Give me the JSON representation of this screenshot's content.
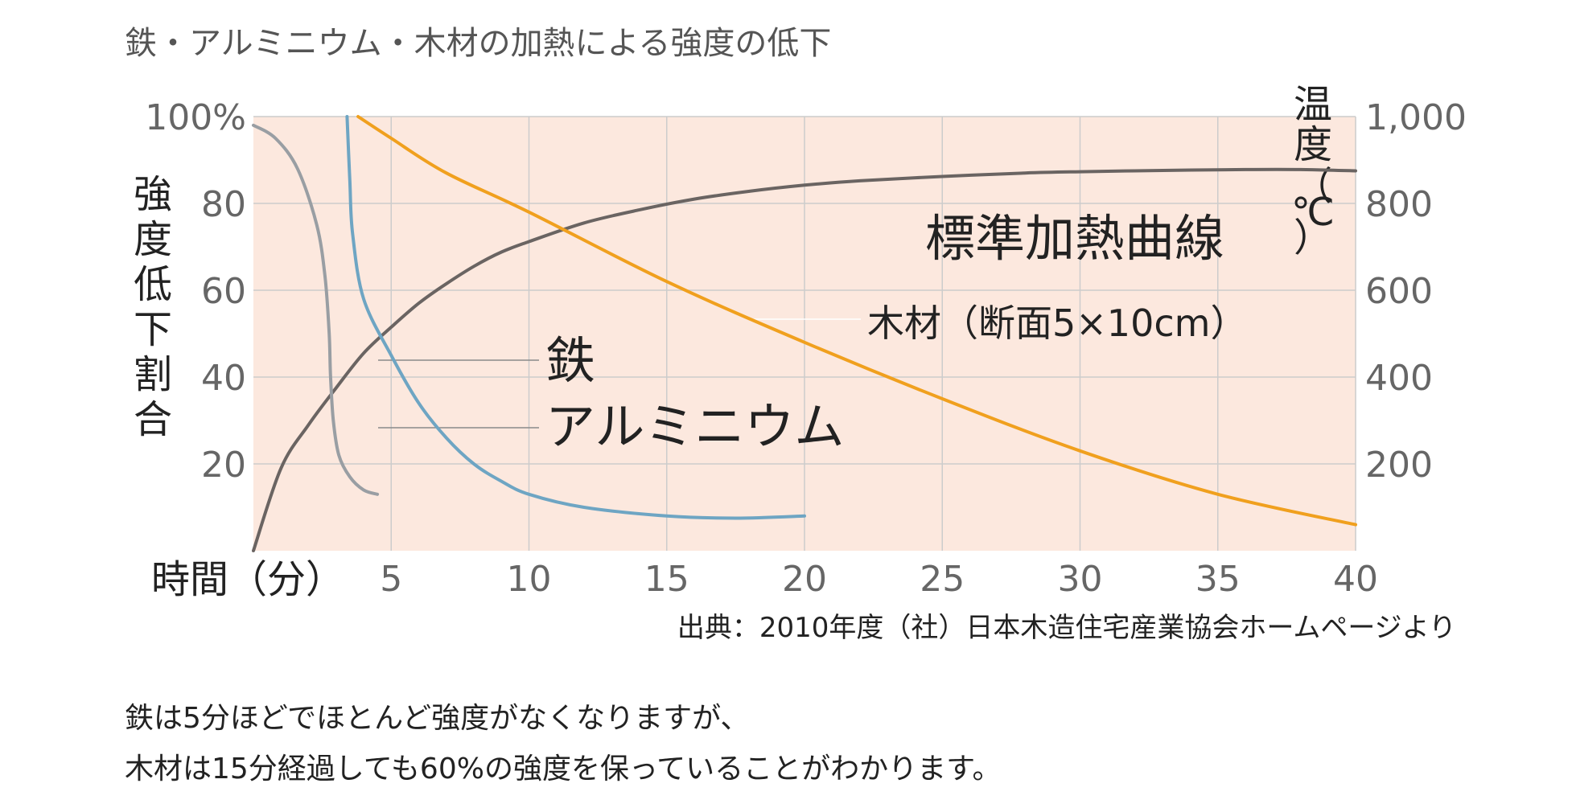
{
  "chart_data": {
    "type": "line",
    "title": "鉄・アルミニウム・木材の加熱による強度の低下",
    "xlabel": "時間（分）",
    "ylabel_left": [
      "強",
      "度",
      "低",
      "下",
      "割",
      "合"
    ],
    "ylabel_right": [
      "温",
      "度",
      "（",
      "℃",
      "）"
    ],
    "x_range": [
      0,
      40
    ],
    "y_left_range": [
      0,
      100
    ],
    "y_right_range": [
      0,
      1000
    ],
    "x_ticks": [
      "5",
      "10",
      "15",
      "20",
      "25",
      "30",
      "35",
      "40"
    ],
    "y_left_ticks": [
      "100%",
      "80",
      "60",
      "40",
      "20"
    ],
    "y_right_ticks": [
      "1,000",
      "800",
      "600",
      "400",
      "200"
    ],
    "grid": true,
    "series": [
      {
        "name": "標準加熱曲線",
        "color": "#6a6462",
        "axis": "right",
        "x": [
          0,
          1,
          2,
          3,
          4,
          5,
          6,
          7,
          8,
          9,
          10,
          12,
          14,
          16,
          18,
          20,
          22,
          25,
          28,
          30,
          33,
          36,
          38,
          40
        ],
        "y": [
          0,
          190,
          290,
          375,
          455,
          515,
          570,
          615,
          655,
          688,
          712,
          755,
          785,
          810,
          828,
          842,
          852,
          862,
          870,
          873,
          876,
          878,
          878,
          875
        ]
      },
      {
        "name": "木材（断面5×10cm）",
        "color": "#f0a01e",
        "axis": "left",
        "x": [
          3.8,
          5,
          7,
          10,
          15,
          20,
          25,
          30,
          35,
          40
        ],
        "y": [
          100,
          95,
          87,
          78,
          62,
          48,
          35,
          23,
          13,
          6
        ]
      },
      {
        "name": "鉄",
        "color": "#999ea3",
        "axis": "left",
        "x": [
          0,
          0.8,
          1.6,
          2.3,
          2.6,
          2.75,
          2.8,
          2.9,
          3.1,
          3.5,
          4.0,
          4.5
        ],
        "y": [
          98,
          95,
          88,
          75,
          63,
          50,
          40,
          30,
          22,
          17,
          14,
          13
        ]
      },
      {
        "name": "アルミニウム",
        "color": "#6ea5c3",
        "axis": "left",
        "x": [
          3.4,
          3.5,
          3.6,
          4.0,
          5.0,
          6.0,
          7.0,
          8.0,
          9.0,
          10.0,
          12.0,
          15.0,
          17.5,
          20.0
        ],
        "y": [
          100,
          85,
          73,
          58,
          45,
          34,
          26,
          20,
          16,
          13,
          10,
          8,
          7.5,
          8
        ]
      }
    ],
    "annotations": [
      {
        "text": "鉄"
      },
      {
        "text": "アルミニウム"
      }
    ],
    "source": "出典：2010年度（社）日本木造住宅産業協会ホームページより"
  },
  "caption": {
    "line1": "鉄は5分ほどでほとんど強度がなくなりますが、",
    "line2": "木材は15分経過しても60%の強度を保っていることがわかります。"
  }
}
